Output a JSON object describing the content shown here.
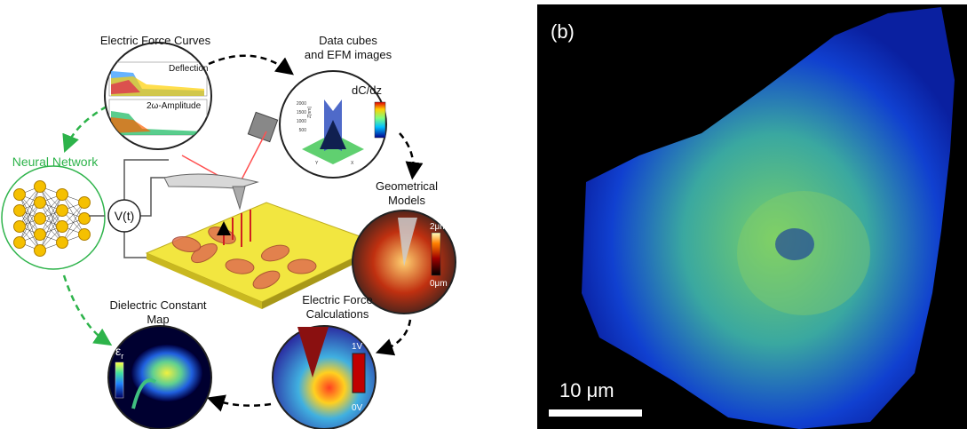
{
  "panel_a": {
    "force_curves": {
      "title": "Electric Force Curves",
      "plot_labels": [
        "Deflection",
        "2ω-Amplitude"
      ]
    },
    "data_cubes": {
      "title_lines": [
        "Data cubes",
        "and EFM images"
      ],
      "colorbar_label": "dC/dz",
      "axis_ticks": [
        "2000",
        "1500",
        "1000",
        "500"
      ],
      "axis_label": "Z[nm]",
      "axes": [
        "Y",
        "X"
      ]
    },
    "neural_network": {
      "title": "Neural Network"
    },
    "voltage_source": {
      "label": "V(t)"
    },
    "geometrical_models": {
      "title_lines": [
        "Geometrical",
        "Models"
      ],
      "colorbar_max": "2μm",
      "colorbar_min": "0μm"
    },
    "force_calculations": {
      "title_lines": [
        "Electric Force",
        "Calculations"
      ],
      "colorbar_max": "1V",
      "colorbar_min": "0V"
    },
    "dielectric_map": {
      "title_lines": [
        "Dielectric Constant",
        "Map"
      ],
      "colorbar_symbol": "ε",
      "colorbar_subscript": "r"
    }
  },
  "panel_b": {
    "label": "(b)",
    "scale_bar": "10 μm"
  }
}
